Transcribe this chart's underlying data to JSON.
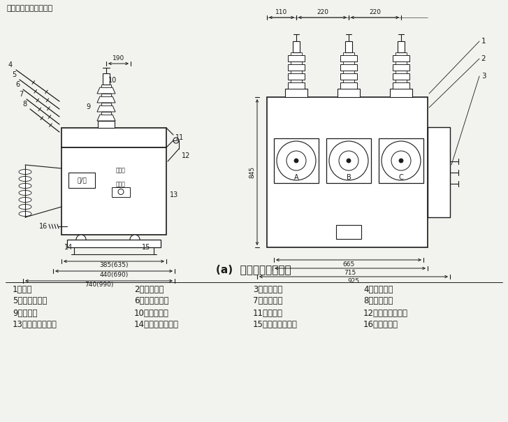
{
  "title_top": "五、外形及安装尺寸：",
  "subtitle": "(a)  外形图及外形尺寸",
  "bg_color": "#f2f2ee",
  "line_color": "#1a1a1a",
  "legend_items": [
    [
      "1、箱体",
      "2、产品铭牌",
      "3、操动机构",
      "4、接线端子"
    ],
    [
      "5、绝缘导电杆",
      "6、电流互感器",
      "7、分合指针",
      "8、储能指针"
    ],
    [
      "9、绝缘筒",
      "10、接线端子",
      "11、后盖板",
      "12、手动储能手柄"
    ],
    [
      "13、操动机构铭牌",
      "14、手动合闸拉环",
      "15、手动分闸拉环",
      "16、接地螺栓"
    ]
  ],
  "dim_left_widths": [
    "385(635)",
    "440(690)",
    "740(990)"
  ],
  "dim_left_top": "190",
  "dim_right_widths": [
    "665",
    "715",
    "925"
  ],
  "dim_right_heights": [
    "845"
  ],
  "dim_right_tops": [
    "110",
    "220",
    "220"
  ]
}
